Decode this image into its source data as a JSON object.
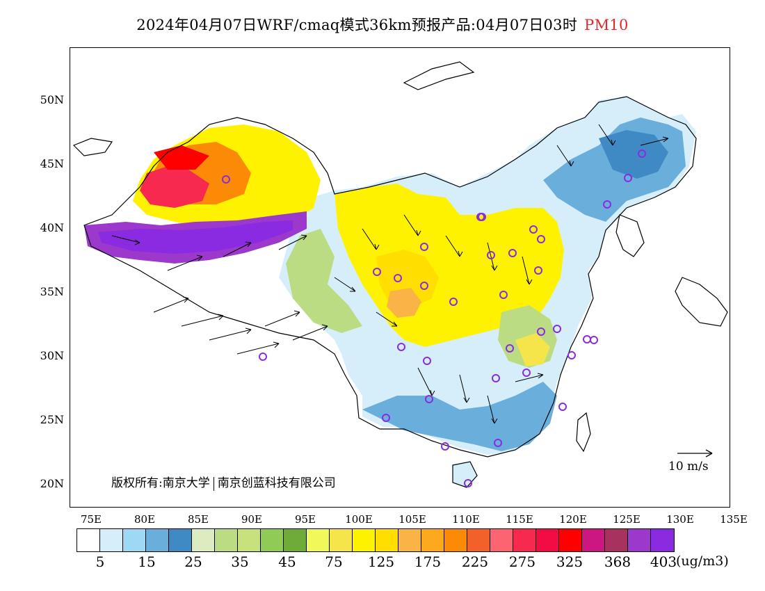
{
  "title": {
    "text": "2024年04月07日WRF/cmaq模式36km预报产品:04月07日03时",
    "pollutant": "PM10"
  },
  "map": {
    "latitude_labels": [
      "50N",
      "45N",
      "40N",
      "35N",
      "30N",
      "25N",
      "20N"
    ],
    "longitude_labels": [
      "75E",
      "80E",
      "85E",
      "90E",
      "95E",
      "100E",
      "105E",
      "110E",
      "115E",
      "120E",
      "125E",
      "130E",
      "135E"
    ],
    "copyright_left": "版权所有:南京大学",
    "copyright_right": "南京创蓝科技有限公司",
    "wind_scale_label": "10 m/s",
    "land_outline_color": "#000000",
    "station_marker_color": "#8a2be2",
    "station_count": 34
  },
  "colorbar": {
    "colors": [
      "#ffffff",
      "#d6eefa",
      "#9dd8f4",
      "#6aaedc",
      "#3f8ac4",
      "#dcebc0",
      "#bcdc84",
      "#c7e27c",
      "#8fcb55",
      "#6fab38",
      "#f1f85a",
      "#f6e54a",
      "#fff200",
      "#ffde00",
      "#f9b347",
      "#fca91e",
      "#fb8a07",
      "#f3612b",
      "#fd6472",
      "#f7294e",
      "#f30c43",
      "#fe0000",
      "#cc1781",
      "#a8325e",
      "#9c38cc",
      "#8a2be2"
    ],
    "labels": [
      "5",
      "15",
      "25",
      "35",
      "45",
      "75",
      "125",
      "175",
      "225",
      "275",
      "325",
      "368",
      "403"
    ],
    "unit": "(ug/m3)"
  }
}
